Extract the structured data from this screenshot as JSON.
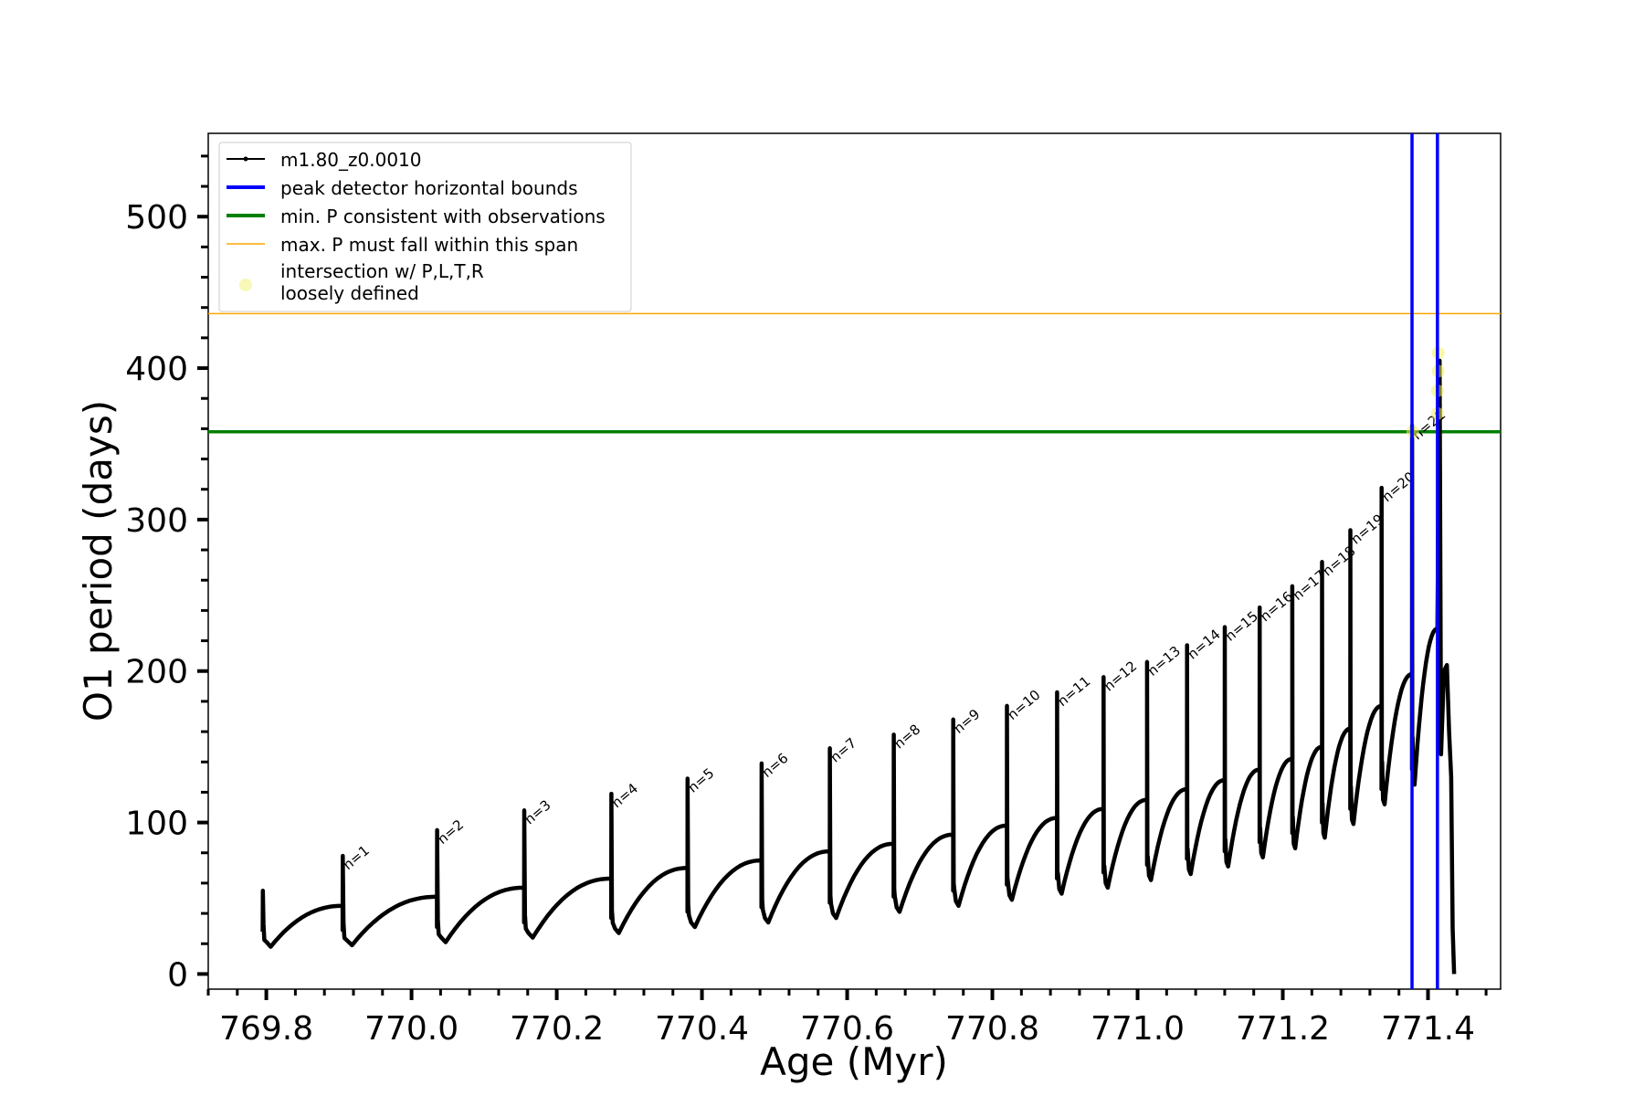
{
  "chart_data": {
    "type": "line",
    "xlabel": "Age (Myr)",
    "ylabel": "O1 period (days)",
    "xlim": [
      769.72,
      771.5
    ],
    "ylim": [
      -10,
      555
    ],
    "x_ticks": [
      769.8,
      770.0,
      770.2,
      770.4,
      770.6,
      770.8,
      771.0,
      771.2,
      771.4
    ],
    "x_tick_labels": [
      "769.8",
      "770.0",
      "770.2",
      "770.4",
      "770.6",
      "770.8",
      "771.0",
      "771.2",
      "771.4"
    ],
    "y_ticks": [
      0,
      100,
      200,
      300,
      400,
      500
    ],
    "y_tick_labels": [
      "0",
      "100",
      "200",
      "300",
      "400",
      "500"
    ],
    "grid": false,
    "legend_placement": "upper-left",
    "legend": [
      {
        "label": "m1.80_z0.0010",
        "style": "line-marker",
        "color": "#000000"
      },
      {
        "label": "peak detector horizontal bounds",
        "style": "thick-line",
        "color": "#0000ff"
      },
      {
        "label": "min. P consistent with observations",
        "style": "thick-line",
        "color": "#008000"
      },
      {
        "label": "max. P must fall within this span",
        "style": "thin-line",
        "color": "#ffa500"
      },
      {
        "label": "intersection w/ P,L,T,R\nloosely defined",
        "style": "dot",
        "color": "#f5f5a0"
      }
    ],
    "series": [
      {
        "name": "m1.80_z0.0010",
        "color": "#000000",
        "pulses": [
          {
            "n": "",
            "x": 769.795,
            "peak": 55,
            "base": 18,
            "end_x": 769.905,
            "end_y": 45
          },
          {
            "n": "n=1",
            "x": 769.905,
            "peak": 78,
            "base": 19,
            "end_x": 770.035,
            "end_y": 51
          },
          {
            "n": "n=2",
            "x": 770.035,
            "peak": 95,
            "base": 21,
            "end_x": 770.155,
            "end_y": 57
          },
          {
            "n": "n=3",
            "x": 770.155,
            "peak": 108,
            "base": 24,
            "end_x": 770.275,
            "end_y": 63
          },
          {
            "n": "n=4",
            "x": 770.275,
            "peak": 119,
            "base": 27,
            "end_x": 770.38,
            "end_y": 70
          },
          {
            "n": "n=5",
            "x": 770.38,
            "peak": 129,
            "base": 31,
            "end_x": 770.482,
            "end_y": 75
          },
          {
            "n": "n=6",
            "x": 770.482,
            "peak": 139,
            "base": 34,
            "end_x": 770.576,
            "end_y": 81
          },
          {
            "n": "n=7",
            "x": 770.576,
            "peak": 149,
            "base": 37,
            "end_x": 770.664,
            "end_y": 86
          },
          {
            "n": "n=8",
            "x": 770.664,
            "peak": 158,
            "base": 41,
            "end_x": 770.746,
            "end_y": 92
          },
          {
            "n": "n=9",
            "x": 770.746,
            "peak": 168,
            "base": 45,
            "end_x": 770.82,
            "end_y": 98
          },
          {
            "n": "n=10",
            "x": 770.82,
            "peak": 177,
            "base": 49,
            "end_x": 770.889,
            "end_y": 103
          },
          {
            "n": "n=11",
            "x": 770.889,
            "peak": 186,
            "base": 53,
            "end_x": 770.953,
            "end_y": 109
          },
          {
            "n": "n=12",
            "x": 770.953,
            "peak": 196,
            "base": 57,
            "end_x": 771.013,
            "end_y": 115
          },
          {
            "n": "n=13",
            "x": 771.013,
            "peak": 206,
            "base": 62,
            "end_x": 771.068,
            "end_y": 122
          },
          {
            "n": "n=14",
            "x": 771.068,
            "peak": 217,
            "base": 66,
            "end_x": 771.12,
            "end_y": 128
          },
          {
            "n": "n=15",
            "x": 771.12,
            "peak": 229,
            "base": 71,
            "end_x": 771.168,
            "end_y": 135
          },
          {
            "n": "n=16",
            "x": 771.168,
            "peak": 242,
            "base": 77,
            "end_x": 771.213,
            "end_y": 142
          },
          {
            "n": "n=17",
            "x": 771.213,
            "peak": 256,
            "base": 83,
            "end_x": 771.254,
            "end_y": 150
          },
          {
            "n": "n=18",
            "x": 771.254,
            "peak": 272,
            "base": 90,
            "end_x": 771.293,
            "end_y": 162
          },
          {
            "n": "n=19",
            "x": 771.293,
            "peak": 293,
            "base": 99,
            "end_x": 771.336,
            "end_y": 177
          },
          {
            "n": "n=20",
            "x": 771.336,
            "peak": 321,
            "base": 112,
            "end_x": 771.378,
            "end_y": 198
          },
          {
            "n": "n=21",
            "x": 771.378,
            "peak": 362,
            "base": 125,
            "end_x": 771.413,
            "end_y": 228
          }
        ],
        "final_phase": [
          [
            771.413,
            228
          ],
          [
            771.416,
            405
          ],
          [
            771.418,
            145
          ],
          [
            771.422,
            200
          ],
          [
            771.426,
            204
          ],
          [
            771.429,
            160
          ],
          [
            771.432,
            130
          ],
          [
            771.434,
            30
          ],
          [
            771.436,
            0
          ]
        ]
      }
    ],
    "vertical_lines": [
      {
        "x": 771.378,
        "color": "#0000ff"
      },
      {
        "x": 771.413,
        "color": "#0000ff"
      }
    ],
    "horizontal_lines": [
      {
        "y": 358,
        "color": "#008000"
      },
      {
        "y": 436,
        "color": "#ffa500"
      }
    ],
    "highlight_points": [
      {
        "x": 771.379,
        "y": 358
      },
      {
        "x": 771.413,
        "y": 370
      },
      {
        "x": 771.413,
        "y": 385
      },
      {
        "x": 771.414,
        "y": 398
      },
      {
        "x": 771.414,
        "y": 410
      }
    ]
  }
}
